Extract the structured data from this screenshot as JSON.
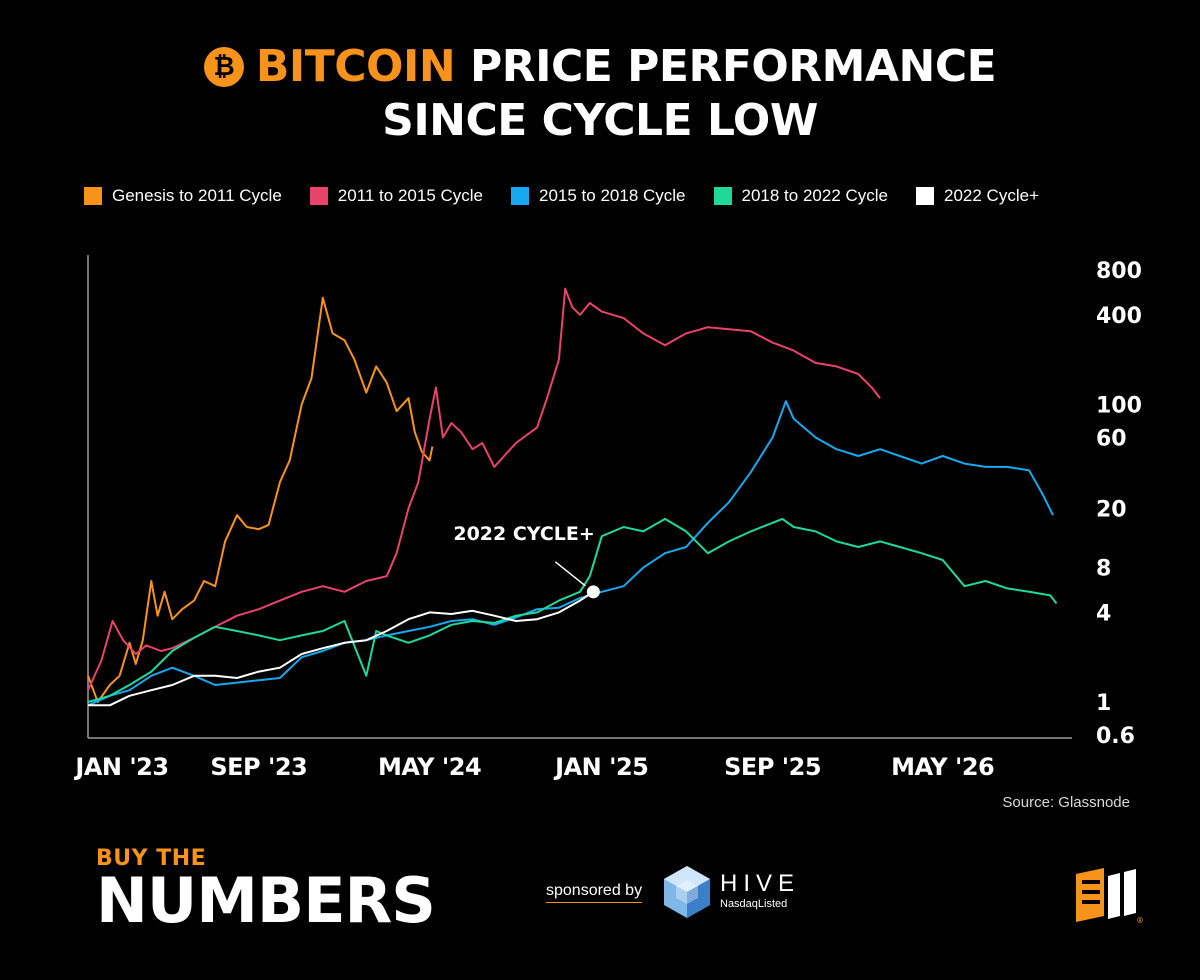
{
  "header": {
    "title_highlight": "BITCOIN",
    "title_rest": "PRICE PERFORMANCE",
    "title_line2": "SINCE CYCLE LOW",
    "coin_symbol": "₿"
  },
  "legend": [
    {
      "label": "Genesis to 2011 Cycle",
      "color": "#f7931a"
    },
    {
      "label": "2011 to 2015 Cycle",
      "color": "#e8436b"
    },
    {
      "label": "2015 to 2018 Cycle",
      "color": "#18a8ee"
    },
    {
      "label": "2018 to 2022 Cycle",
      "color": "#1ed99a"
    },
    {
      "label": "2022 Cycle+",
      "color": "#ffffff"
    }
  ],
  "chart_data": {
    "type": "line",
    "scale": "log",
    "grid": false,
    "legend_position": "top",
    "title": "BITCOIN PRICE PERFORMANCE SINCE CYCLE LOW",
    "xlabel": "",
    "ylabel": "",
    "x_range": [
      "2023-01-01",
      "2026-11-01"
    ],
    "y_range": [
      0.6,
      800
    ],
    "x_ticks": [
      "JAN '23",
      "SEP '23",
      "MAY '24",
      "JAN '25",
      "SEP '25",
      "MAY '26"
    ],
    "x_tick_dates": [
      "2023-01-01",
      "2023-09-01",
      "2024-05-01",
      "2025-01-01",
      "2025-09-01",
      "2026-05-01"
    ],
    "y_ticks": [
      800,
      400,
      100,
      60,
      20,
      8,
      4,
      1,
      0.6
    ],
    "annotation": {
      "label": "2022 CYCLE+",
      "x": "2024-12-20",
      "y": 5.5
    },
    "series": [
      {
        "name": "Genesis to 2011 Cycle",
        "color": "#f7931a",
        "points": [
          [
            "2023-01-01",
            1.5
          ],
          [
            "2023-01-15",
            1.0
          ],
          [
            "2023-02-01",
            1.3
          ],
          [
            "2023-02-15",
            1.5
          ],
          [
            "2023-03-01",
            2.5
          ],
          [
            "2023-03-10",
            1.8
          ],
          [
            "2023-03-20",
            2.6
          ],
          [
            "2023-04-01",
            6.5
          ],
          [
            "2023-04-10",
            3.8
          ],
          [
            "2023-04-20",
            5.5
          ],
          [
            "2023-05-01",
            3.6
          ],
          [
            "2023-05-15",
            4.2
          ],
          [
            "2023-06-01",
            4.8
          ],
          [
            "2023-06-15",
            6.5
          ],
          [
            "2023-07-01",
            6.0
          ],
          [
            "2023-07-15",
            12.0
          ],
          [
            "2023-08-01",
            18.0
          ],
          [
            "2023-08-15",
            15.0
          ],
          [
            "2023-09-01",
            14.5
          ],
          [
            "2023-09-15",
            15.5
          ],
          [
            "2023-10-01",
            30.0
          ],
          [
            "2023-10-15",
            42.0
          ],
          [
            "2023-11-01",
            100.0
          ],
          [
            "2023-11-15",
            150.0
          ],
          [
            "2023-12-01",
            520.0
          ],
          [
            "2023-12-15",
            300.0
          ],
          [
            "2024-01-01",
            270.0
          ],
          [
            "2024-01-15",
            200.0
          ],
          [
            "2024-02-01",
            120.0
          ],
          [
            "2024-02-15",
            180.0
          ],
          [
            "2024-03-01",
            140.0
          ],
          [
            "2024-03-15",
            90.0
          ],
          [
            "2024-04-01",
            110.0
          ],
          [
            "2024-04-10",
            65.0
          ],
          [
            "2024-04-20",
            48.0
          ],
          [
            "2024-05-01",
            42.0
          ],
          [
            "2024-05-05",
            52.0
          ]
        ]
      },
      {
        "name": "2011 to 2015 Cycle",
        "color": "#e8436b",
        "points": [
          [
            "2023-01-01",
            1.2
          ],
          [
            "2023-01-20",
            1.9
          ],
          [
            "2023-02-05",
            3.5
          ],
          [
            "2023-02-20",
            2.6
          ],
          [
            "2023-03-10",
            2.1
          ],
          [
            "2023-03-25",
            2.4
          ],
          [
            "2023-04-15",
            2.2
          ],
          [
            "2023-05-01",
            2.3
          ],
          [
            "2023-06-01",
            2.7
          ],
          [
            "2023-07-01",
            3.2
          ],
          [
            "2023-08-01",
            3.8
          ],
          [
            "2023-09-01",
            4.2
          ],
          [
            "2023-10-01",
            4.8
          ],
          [
            "2023-11-01",
            5.5
          ],
          [
            "2023-12-01",
            6.0
          ],
          [
            "2024-01-01",
            5.5
          ],
          [
            "2024-02-01",
            6.5
          ],
          [
            "2024-03-01",
            7.0
          ],
          [
            "2024-03-15",
            10.0
          ],
          [
            "2024-04-01",
            20.0
          ],
          [
            "2024-04-15",
            30.0
          ],
          [
            "2024-05-01",
            80.0
          ],
          [
            "2024-05-10",
            130.0
          ],
          [
            "2024-05-20",
            60.0
          ],
          [
            "2024-06-01",
            75.0
          ],
          [
            "2024-06-15",
            65.0
          ],
          [
            "2024-07-01",
            50.0
          ],
          [
            "2024-07-15",
            55.0
          ],
          [
            "2024-08-01",
            38.0
          ],
          [
            "2024-08-15",
            45.0
          ],
          [
            "2024-09-01",
            55.0
          ],
          [
            "2024-10-01",
            70.0
          ],
          [
            "2024-10-15",
            110.0
          ],
          [
            "2024-11-01",
            200.0
          ],
          [
            "2024-11-10",
            600.0
          ],
          [
            "2024-11-20",
            450.0
          ],
          [
            "2024-12-01",
            400.0
          ],
          [
            "2024-12-15",
            480.0
          ],
          [
            "2025-01-01",
            420.0
          ],
          [
            "2025-02-01",
            380.0
          ],
          [
            "2025-03-01",
            300.0
          ],
          [
            "2025-04-01",
            250.0
          ],
          [
            "2025-05-01",
            300.0
          ],
          [
            "2025-06-01",
            330.0
          ],
          [
            "2025-07-01",
            320.0
          ],
          [
            "2025-08-01",
            310.0
          ],
          [
            "2025-09-01",
            260.0
          ],
          [
            "2025-10-01",
            230.0
          ],
          [
            "2025-11-01",
            190.0
          ],
          [
            "2025-12-01",
            180.0
          ],
          [
            "2026-01-01",
            160.0
          ],
          [
            "2026-01-20",
            130.0
          ],
          [
            "2026-02-01",
            110.0
          ]
        ]
      },
      {
        "name": "2015 to 2018 Cycle",
        "color": "#18a8ee",
        "points": [
          [
            "2023-01-01",
            0.95
          ],
          [
            "2023-02-01",
            1.1
          ],
          [
            "2023-03-01",
            1.2
          ],
          [
            "2023-04-01",
            1.5
          ],
          [
            "2023-05-01",
            1.7
          ],
          [
            "2023-06-01",
            1.5
          ],
          [
            "2023-07-01",
            1.3
          ],
          [
            "2023-08-01",
            1.35
          ],
          [
            "2023-09-01",
            1.4
          ],
          [
            "2023-10-01",
            1.45
          ],
          [
            "2023-11-01",
            2.0
          ],
          [
            "2023-12-01",
            2.2
          ],
          [
            "2024-01-01",
            2.5
          ],
          [
            "2024-02-01",
            2.6
          ],
          [
            "2024-03-01",
            2.8
          ],
          [
            "2024-04-01",
            3.0
          ],
          [
            "2024-05-01",
            3.2
          ],
          [
            "2024-06-01",
            3.5
          ],
          [
            "2024-07-01",
            3.6
          ],
          [
            "2024-08-01",
            3.3
          ],
          [
            "2024-09-01",
            3.7
          ],
          [
            "2024-10-01",
            4.2
          ],
          [
            "2024-11-01",
            4.3
          ],
          [
            "2024-12-01",
            5.0
          ],
          [
            "2025-01-01",
            5.5
          ],
          [
            "2025-02-01",
            6.0
          ],
          [
            "2025-03-01",
            8.0
          ],
          [
            "2025-04-01",
            10.0
          ],
          [
            "2025-05-01",
            11.0
          ],
          [
            "2025-06-01",
            16.0
          ],
          [
            "2025-07-01",
            22.0
          ],
          [
            "2025-08-01",
            35.0
          ],
          [
            "2025-09-01",
            60.0
          ],
          [
            "2025-09-20",
            105.0
          ],
          [
            "2025-10-01",
            80.0
          ],
          [
            "2025-11-01",
            60.0
          ],
          [
            "2025-12-01",
            50.0
          ],
          [
            "2026-01-01",
            45.0
          ],
          [
            "2026-02-01",
            50.0
          ],
          [
            "2026-03-01",
            45.0
          ],
          [
            "2026-04-01",
            40.0
          ],
          [
            "2026-05-01",
            45.0
          ],
          [
            "2026-06-01",
            40.0
          ],
          [
            "2026-07-01",
            38.0
          ],
          [
            "2026-08-01",
            38.0
          ],
          [
            "2026-09-01",
            36.0
          ],
          [
            "2026-09-20",
            25.0
          ],
          [
            "2026-10-05",
            18.0
          ]
        ]
      },
      {
        "name": "2018 to 2022 Cycle",
        "color": "#1ed99a",
        "points": [
          [
            "2023-01-01",
            1.0
          ],
          [
            "2023-02-01",
            1.1
          ],
          [
            "2023-03-01",
            1.3
          ],
          [
            "2023-04-01",
            1.6
          ],
          [
            "2023-05-01",
            2.2
          ],
          [
            "2023-06-01",
            2.7
          ],
          [
            "2023-07-01",
            3.2
          ],
          [
            "2023-08-01",
            3.0
          ],
          [
            "2023-09-01",
            2.8
          ],
          [
            "2023-10-01",
            2.6
          ],
          [
            "2023-11-01",
            2.8
          ],
          [
            "2023-12-01",
            3.0
          ],
          [
            "2024-01-01",
            3.5
          ],
          [
            "2024-02-01",
            1.5
          ],
          [
            "2024-02-15",
            3.0
          ],
          [
            "2024-03-01",
            2.8
          ],
          [
            "2024-04-01",
            2.5
          ],
          [
            "2024-05-01",
            2.8
          ],
          [
            "2024-06-01",
            3.3
          ],
          [
            "2024-07-01",
            3.5
          ],
          [
            "2024-08-01",
            3.4
          ],
          [
            "2024-09-01",
            3.8
          ],
          [
            "2024-10-01",
            4.0
          ],
          [
            "2024-11-01",
            4.8
          ],
          [
            "2024-12-01",
            5.5
          ],
          [
            "2024-12-15",
            7.0
          ],
          [
            "2025-01-01",
            13.0
          ],
          [
            "2025-02-01",
            15.0
          ],
          [
            "2025-03-01",
            14.0
          ],
          [
            "2025-04-01",
            17.0
          ],
          [
            "2025-05-01",
            14.0
          ],
          [
            "2025-06-01",
            10.0
          ],
          [
            "2025-07-01",
            12.0
          ],
          [
            "2025-08-01",
            14.0
          ],
          [
            "2025-09-01",
            16.0
          ],
          [
            "2025-09-15",
            17.0
          ],
          [
            "2025-10-01",
            15.0
          ],
          [
            "2025-11-01",
            14.0
          ],
          [
            "2025-12-01",
            12.0
          ],
          [
            "2026-01-01",
            11.0
          ],
          [
            "2026-02-01",
            12.0
          ],
          [
            "2026-03-01",
            11.0
          ],
          [
            "2026-04-01",
            10.0
          ],
          [
            "2026-05-01",
            9.0
          ],
          [
            "2026-06-01",
            6.0
          ],
          [
            "2026-07-01",
            6.5
          ],
          [
            "2026-08-01",
            5.8
          ],
          [
            "2026-09-01",
            5.5
          ],
          [
            "2026-10-01",
            5.2
          ],
          [
            "2026-10-10",
            4.6
          ]
        ]
      },
      {
        "name": "2022 Cycle+",
        "color": "#ffffff",
        "points": [
          [
            "2023-01-01",
            0.95
          ],
          [
            "2023-02-01",
            0.95
          ],
          [
            "2023-03-01",
            1.1
          ],
          [
            "2023-04-01",
            1.2
          ],
          [
            "2023-05-01",
            1.3
          ],
          [
            "2023-06-01",
            1.5
          ],
          [
            "2023-07-01",
            1.5
          ],
          [
            "2023-08-01",
            1.45
          ],
          [
            "2023-09-01",
            1.6
          ],
          [
            "2023-10-01",
            1.7
          ],
          [
            "2023-11-01",
            2.1
          ],
          [
            "2023-12-01",
            2.3
          ],
          [
            "2024-01-01",
            2.5
          ],
          [
            "2024-02-01",
            2.6
          ],
          [
            "2024-03-01",
            3.0
          ],
          [
            "2024-04-01",
            3.6
          ],
          [
            "2024-05-01",
            4.0
          ],
          [
            "2024-06-01",
            3.9
          ],
          [
            "2024-07-01",
            4.1
          ],
          [
            "2024-08-01",
            3.8
          ],
          [
            "2024-09-01",
            3.5
          ],
          [
            "2024-10-01",
            3.6
          ],
          [
            "2024-11-01",
            4.0
          ],
          [
            "2024-12-01",
            4.8
          ],
          [
            "2024-12-20",
            5.5
          ]
        ]
      }
    ]
  },
  "source": "Source: Glassnode",
  "branding": {
    "buy_the": "BUY THE",
    "numbers": "NUMBERS",
    "sponsored_by": "sponsored by",
    "hive": "HIVE",
    "hive_sub": "NasdaqListed"
  }
}
